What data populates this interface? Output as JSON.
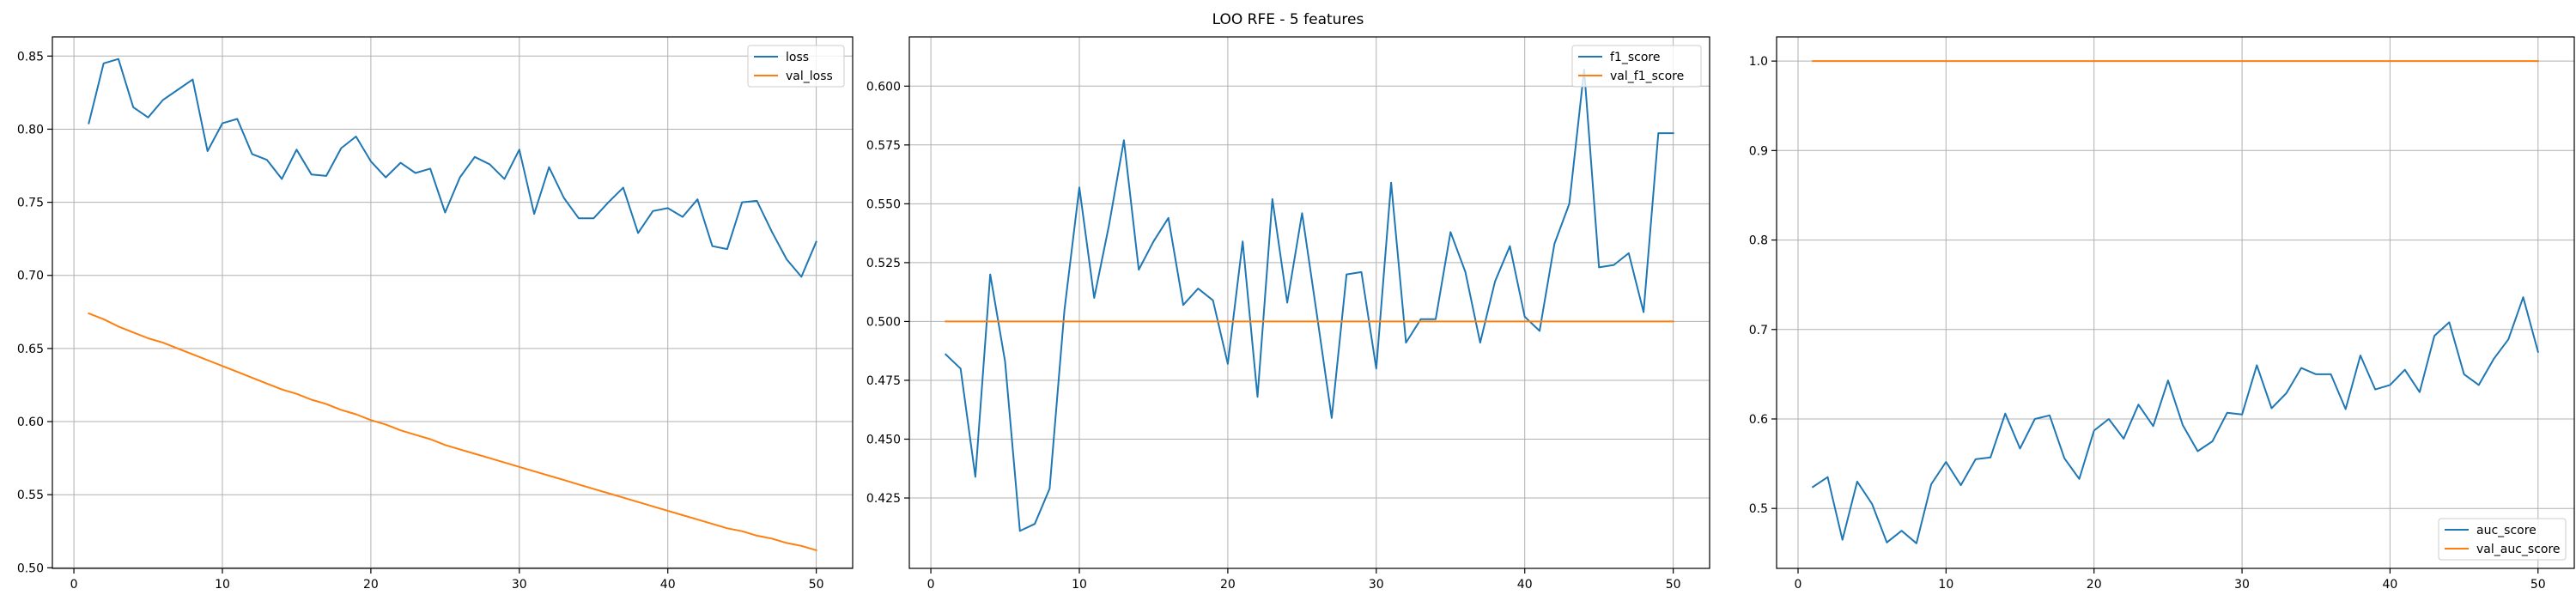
{
  "figure": {
    "suptitle": "LOO RFE - 5 features"
  },
  "colors": {
    "series_1": "#1f77b4",
    "series_2": "#ff7f0e",
    "grid": "#b0b0b0"
  },
  "chart_data": [
    {
      "type": "line",
      "title": "",
      "xlabel": "",
      "ylabel": "",
      "xlim": [
        -1.45,
        52.45
      ],
      "ylim": [
        0.4996,
        0.8631
      ],
      "xticks": [
        0,
        10,
        20,
        30,
        40,
        50
      ],
      "xtick_labels": [
        "0",
        "10",
        "20",
        "30",
        "40",
        "50"
      ],
      "yticks": [
        0.5,
        0.55,
        0.6,
        0.65,
        0.7,
        0.75,
        0.8,
        0.85
      ],
      "ytick_labels": [
        "0.50",
        "0.55",
        "0.60",
        "0.65",
        "0.70",
        "0.75",
        "0.80",
        "0.85"
      ],
      "grid": true,
      "legend_position": "upper right",
      "x": [
        1,
        2,
        3,
        4,
        5,
        6,
        7,
        8,
        9,
        10,
        11,
        12,
        13,
        14,
        15,
        16,
        17,
        18,
        19,
        20,
        21,
        22,
        23,
        24,
        25,
        26,
        27,
        28,
        29,
        30,
        31,
        32,
        33,
        34,
        35,
        36,
        37,
        38,
        39,
        40,
        41,
        42,
        43,
        44,
        45,
        46,
        47,
        48,
        49,
        50
      ],
      "series": [
        {
          "name": "loss",
          "color": "#1f77b4",
          "values": [
            0.804,
            0.845,
            0.848,
            0.815,
            0.808,
            0.82,
            0.827,
            0.834,
            0.785,
            0.804,
            0.807,
            0.783,
            0.779,
            0.766,
            0.786,
            0.769,
            0.768,
            0.787,
            0.795,
            0.778,
            0.767,
            0.777,
            0.77,
            0.773,
            0.743,
            0.767,
            0.781,
            0.776,
            0.766,
            0.786,
            0.742,
            0.774,
            0.753,
            0.739,
            0.739,
            0.75,
            0.76,
            0.729,
            0.744,
            0.746,
            0.74,
            0.752,
            0.72,
            0.718,
            0.75,
            0.751,
            0.73,
            0.711,
            0.699,
            0.723
          ]
        },
        {
          "name": "val_loss",
          "color": "#ff7f0e",
          "values": [
            0.674,
            0.67,
            0.665,
            0.661,
            0.657,
            0.654,
            0.65,
            0.646,
            0.642,
            0.638,
            0.634,
            0.63,
            0.626,
            0.622,
            0.619,
            0.615,
            0.612,
            0.608,
            0.605,
            0.601,
            0.598,
            0.594,
            0.591,
            0.588,
            0.584,
            0.581,
            0.578,
            0.575,
            0.572,
            0.569,
            0.566,
            0.563,
            0.56,
            0.557,
            0.554,
            0.551,
            0.548,
            0.545,
            0.542,
            0.539,
            0.536,
            0.533,
            0.53,
            0.527,
            0.525,
            0.522,
            0.52,
            0.517,
            0.515,
            0.512
          ]
        }
      ]
    },
    {
      "type": "line",
      "title": "",
      "xlabel": "",
      "ylabel": "",
      "xlim": [
        -1.45,
        52.45
      ],
      "ylim": [
        0.3951,
        0.6209
      ],
      "xticks": [
        0,
        10,
        20,
        30,
        40,
        50
      ],
      "xtick_labels": [
        "0",
        "10",
        "20",
        "30",
        "40",
        "50"
      ],
      "yticks": [
        0.425,
        0.45,
        0.475,
        0.5,
        0.525,
        0.55,
        0.575,
        0.6
      ],
      "ytick_labels": [
        "0.425",
        "0.450",
        "0.475",
        "0.500",
        "0.525",
        "0.550",
        "0.575",
        "0.600"
      ],
      "grid": true,
      "legend_position": "upper right",
      "x": [
        1,
        2,
        3,
        4,
        5,
        6,
        7,
        8,
        9,
        10,
        11,
        12,
        13,
        14,
        15,
        16,
        17,
        18,
        19,
        20,
        21,
        22,
        23,
        24,
        25,
        26,
        27,
        28,
        29,
        30,
        31,
        32,
        33,
        34,
        35,
        36,
        37,
        38,
        39,
        40,
        41,
        42,
        43,
        44,
        45,
        46,
        47,
        48,
        49,
        50
      ],
      "series": [
        {
          "name": "f1_score",
          "color": "#1f77b4",
          "values": [
            0.486,
            0.48,
            0.434,
            0.52,
            0.483,
            0.411,
            0.414,
            0.429,
            0.505,
            0.557,
            0.51,
            0.541,
            0.577,
            0.522,
            0.534,
            0.544,
            0.507,
            0.514,
            0.509,
            0.482,
            0.534,
            0.468,
            0.552,
            0.508,
            0.546,
            0.503,
            0.459,
            0.52,
            0.521,
            0.48,
            0.559,
            0.491,
            0.501,
            0.501,
            0.538,
            0.521,
            0.491,
            0.517,
            0.532,
            0.502,
            0.496,
            0.533,
            0.55,
            0.607,
            0.523,
            0.524,
            0.529,
            0.504,
            0.58,
            0.58
          ]
        },
        {
          "name": "val_f1_score",
          "color": "#ff7f0e",
          "values": [
            0.5,
            0.5,
            0.5,
            0.5,
            0.5,
            0.5,
            0.5,
            0.5,
            0.5,
            0.5,
            0.5,
            0.5,
            0.5,
            0.5,
            0.5,
            0.5,
            0.5,
            0.5,
            0.5,
            0.5,
            0.5,
            0.5,
            0.5,
            0.5,
            0.5,
            0.5,
            0.5,
            0.5,
            0.5,
            0.5,
            0.5,
            0.5,
            0.5,
            0.5,
            0.5,
            0.5,
            0.5,
            0.5,
            0.5,
            0.5,
            0.5,
            0.5,
            0.5,
            0.5,
            0.5,
            0.5,
            0.5,
            0.5,
            0.5,
            0.5
          ]
        }
      ]
    },
    {
      "type": "line",
      "title": "",
      "xlabel": "",
      "ylabel": "",
      "xlim": [
        -1.45,
        52.45
      ],
      "ylim": [
        0.433,
        1.027
      ],
      "xticks": [
        0,
        10,
        20,
        30,
        40,
        50
      ],
      "xtick_labels": [
        "0",
        "10",
        "20",
        "30",
        "40",
        "50"
      ],
      "yticks": [
        0.5,
        0.6,
        0.7,
        0.8,
        0.9,
        1.0
      ],
      "ytick_labels": [
        "0.5",
        "0.6",
        "0.7",
        "0.8",
        "0.9",
        "1.0"
      ],
      "grid": true,
      "legend_position": "lower right",
      "x": [
        1,
        2,
        3,
        4,
        5,
        6,
        7,
        8,
        9,
        10,
        11,
        12,
        13,
        14,
        15,
        16,
        17,
        18,
        19,
        20,
        21,
        22,
        23,
        24,
        25,
        26,
        27,
        28,
        29,
        30,
        31,
        32,
        33,
        34,
        35,
        36,
        37,
        38,
        39,
        40,
        41,
        42,
        43,
        44,
        45,
        46,
        47,
        48,
        49,
        50
      ],
      "series": [
        {
          "name": "auc_score",
          "color": "#1f77b4",
          "values": [
            0.524,
            0.535,
            0.465,
            0.53,
            0.505,
            0.462,
            0.475,
            0.461,
            0.527,
            0.552,
            0.526,
            0.555,
            0.557,
            0.606,
            0.567,
            0.6,
            0.604,
            0.556,
            0.533,
            0.587,
            0.6,
            0.578,
            0.616,
            0.592,
            0.643,
            0.593,
            0.564,
            0.575,
            0.607,
            0.605,
            0.66,
            0.612,
            0.629,
            0.657,
            0.65,
            0.65,
            0.611,
            0.671,
            0.633,
            0.638,
            0.655,
            0.63,
            0.693,
            0.708,
            0.65,
            0.638,
            0.667,
            0.689,
            0.736,
            0.675
          ]
        },
        {
          "name": "val_auc_score",
          "color": "#ff7f0e",
          "values": [
            1,
            1,
            1,
            1,
            1,
            1,
            1,
            1,
            1,
            1,
            1,
            1,
            1,
            1,
            1,
            1,
            1,
            1,
            1,
            1,
            1,
            1,
            1,
            1,
            1,
            1,
            1,
            1,
            1,
            1,
            1,
            1,
            1,
            1,
            1,
            1,
            1,
            1,
            1,
            1,
            1,
            1,
            1,
            1,
            1,
            1,
            1,
            1,
            1,
            1
          ]
        }
      ]
    }
  ]
}
